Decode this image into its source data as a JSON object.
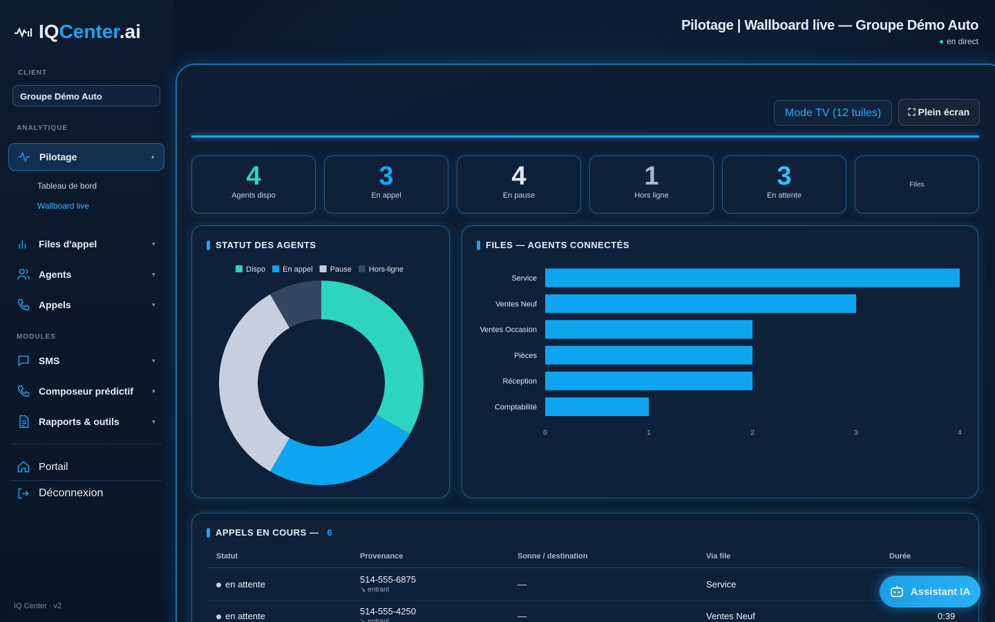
{
  "sidebar": {
    "logo": [
      "IQ",
      "Center",
      ".ai"
    ],
    "client_label": "CLIENT",
    "client": "Groupe Démo Auto",
    "section_analytics": "ANALYTIQUE",
    "pilotage": "Pilotage",
    "pilotage_items": [
      "Tableau de bord",
      "Wallboard live"
    ],
    "analytics_items": [
      "Files d'appel",
      "Agents",
      "Appels"
    ],
    "section_modules": "MODULES",
    "module_items": [
      "SMS",
      "Composeur prédictif",
      "Rapports & outils"
    ],
    "footer_links": [
      "Portail",
      "Déconnexion"
    ],
    "version": "IQ Center · v2"
  },
  "header": {
    "title": "Pilotage | Wallboard live — Groupe Démo Auto",
    "status": "en direct"
  },
  "toolbar": {
    "mode": "Mode TV (12 tuiles)",
    "fullscreen": "Plein écran"
  },
  "kpis": [
    {
      "value": 4,
      "label": "Agents dispo"
    },
    {
      "value": 3,
      "label": "En appel"
    },
    {
      "value": 4,
      "label": "En pause"
    },
    {
      "value": 1,
      "label": "Hors ligne"
    },
    {
      "value": 3,
      "label": "En attente"
    },
    {
      "label": "Files"
    }
  ],
  "chart_data": [
    {
      "type": "donut",
      "title": "STATUT DES AGENTS",
      "categories": [
        "Dispo",
        "En appel",
        "Pause",
        "Hors-ligne"
      ],
      "values": [
        4,
        3,
        4,
        1
      ],
      "colors": [
        "#2dd4bf",
        "#0ea5f0",
        "#c7d0df",
        "#334560"
      ]
    },
    {
      "type": "bar",
      "orientation": "horizontal",
      "title": "FILES — AGENTS CONNECTÉS",
      "categories": [
        "Service",
        "Ventes Neuf",
        "Ventes Occasion",
        "Pièces",
        "Réception",
        "Comptabilité"
      ],
      "values": [
        4,
        3,
        2,
        2,
        2,
        1
      ],
      "color": "#0ea5f0",
      "xlim": [
        0,
        4
      ],
      "xticks": [
        0,
        1,
        2,
        3,
        4
      ]
    }
  ],
  "table": {
    "title": "APPELS EN COURS —",
    "count": 6,
    "columns": [
      "Statut",
      "Provenance",
      "Sonne / destination",
      "Via file",
      "Durée"
    ],
    "rows": [
      {
        "status": "en attente",
        "from": "514-555-6875",
        "direction": "↘ entrant",
        "destination": "—",
        "queue": "Service"
      },
      {
        "status": "en attente",
        "from": "514-555-4250",
        "direction": "↘ entrant",
        "destination": "—",
        "queue": "Ventes Neuf",
        "duration": "0:39"
      }
    ]
  },
  "assistant": "Assistant IA"
}
